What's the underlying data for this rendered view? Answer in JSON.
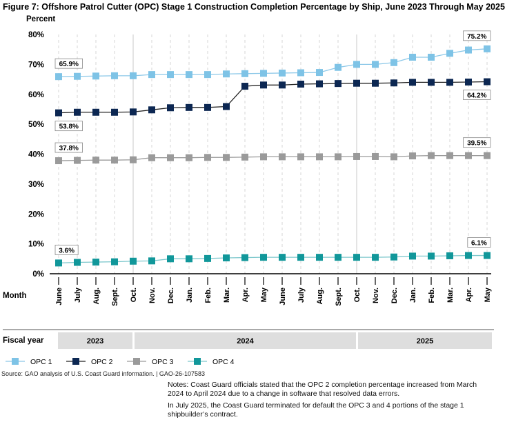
{
  "title": "Figure 7: Offshore Patrol Cutter (OPC) Stage 1 Construction Completion Percentage by Ship, June 2023 Through May 2025",
  "source": "Source: GAO analysis of U.S. Coast Guard information.  |  GAO-26-107583",
  "notes": [
    "Notes: Coast Guard officials stated that the OPC 2 completion percentage increased from March 2024 to April 2024 due to a change in software that resolved data errors.",
    "In July 2025, the Coast Guard terminated for default the OPC 3 and 4 portions of the stage 1 shipbuilder’s contract."
  ],
  "chart_data": {
    "type": "line",
    "ylabel": "Percent",
    "xlabel": "Month",
    "ylim": [
      0,
      80
    ],
    "yticks": [
      "0%",
      "10%",
      "20%",
      "30%",
      "40%",
      "50%",
      "60%",
      "70%",
      "80%"
    ],
    "grid": "vertical dashed per month",
    "legend_placement": "bottom",
    "categories": [
      "June",
      "July",
      "Aug.",
      "Sept.",
      "Oct.",
      "Nov.",
      "Dec.",
      "Jan.",
      "Feb.",
      "Mar.",
      "Apr.",
      "May",
      "June",
      "July",
      "Aug.",
      "Sept.",
      "Oct.",
      "Nov.",
      "Dec.",
      "Jan.",
      "Feb.",
      "Mar.",
      "Apr.",
      "May"
    ],
    "fiscal_year_label": "Fiscal year",
    "fiscal_years": [
      {
        "label": "2023",
        "start": 0,
        "end": 4
      },
      {
        "label": "2024",
        "start": 4,
        "end": 16
      },
      {
        "label": "2025",
        "start": 16,
        "end": 23
      }
    ],
    "series": [
      {
        "name": "OPC 1",
        "color": "#7ec3e6",
        "line": "#8cc8e8",
        "values": [
          65.9,
          66.0,
          66.1,
          66.2,
          66.2,
          66.6,
          66.6,
          66.6,
          66.6,
          66.8,
          66.9,
          67.0,
          67.1,
          67.2,
          67.3,
          69.0,
          70.0,
          70.0,
          70.6,
          72.4,
          72.4,
          73.7,
          74.8,
          75.2
        ],
        "labels": {
          "first": "65.9%",
          "last": "75.2%"
        },
        "first_pos": "above",
        "last_pos": "above"
      },
      {
        "name": "OPC 2",
        "color": "#0c2752",
        "line": "#222222",
        "values": [
          53.8,
          54.0,
          54.0,
          54.0,
          54.1,
          54.8,
          55.5,
          55.6,
          55.6,
          55.9,
          62.7,
          63.1,
          63.1,
          63.4,
          63.5,
          63.6,
          63.7,
          63.7,
          63.8,
          64.0,
          64.0,
          64.0,
          64.1,
          64.2
        ],
        "labels": {
          "first": "53.8%",
          "last": "64.2%"
        },
        "first_pos": "below",
        "last_pos": "below"
      },
      {
        "name": "OPC 3",
        "color": "#9a9a9a",
        "line": "#9a9a9a",
        "values": [
          37.8,
          37.9,
          38.0,
          38.0,
          38.1,
          38.8,
          38.8,
          38.8,
          38.9,
          38.9,
          39.0,
          39.1,
          39.1,
          39.1,
          39.1,
          39.1,
          39.2,
          39.2,
          39.1,
          39.4,
          39.5,
          39.5,
          39.5,
          39.5
        ],
        "labels": {
          "first": "37.8%",
          "last": "39.5%"
        },
        "first_pos": "above",
        "last_pos": "above"
      },
      {
        "name": "OPC 4",
        "color": "#11979a",
        "line": "#7cc7cc",
        "values": [
          3.6,
          3.8,
          3.9,
          4.0,
          4.2,
          4.3,
          5.0,
          5.0,
          5.1,
          5.3,
          5.4,
          5.5,
          5.5,
          5.5,
          5.5,
          5.5,
          5.5,
          5.5,
          5.6,
          5.9,
          5.9,
          6.0,
          6.1,
          6.1
        ],
        "labels": {
          "first": "3.6%",
          "last": "6.1%"
        },
        "first_pos": "above",
        "last_pos": "above"
      }
    ]
  }
}
